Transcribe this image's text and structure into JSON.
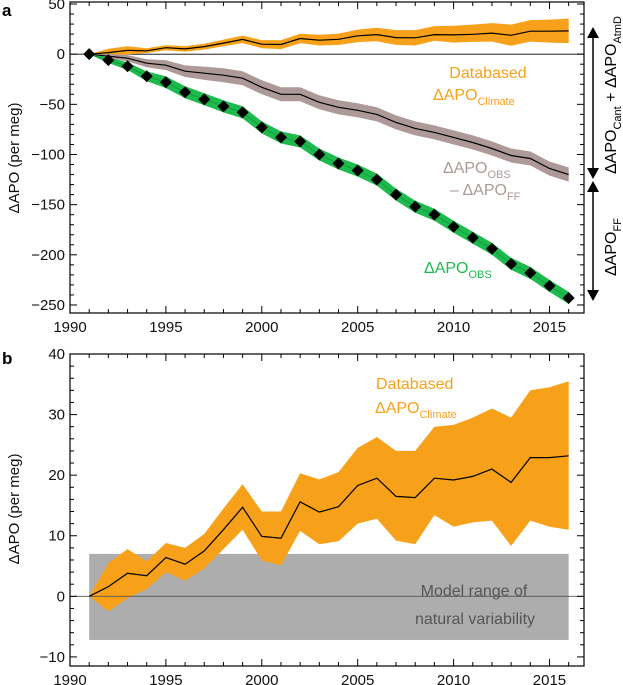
{
  "colors": {
    "climate": "#f7a11a",
    "obs": "#1dbb4e",
    "obs_minus_ff": "#ad9a98",
    "natural_variability": "#adadad",
    "natural_text": "#555555",
    "line": "#000000"
  },
  "chart_data": [
    {
      "panel": "a",
      "type": "line",
      "xlabel": "",
      "ylabel": "ΔAPO (per meg)",
      "xlim": [
        1990,
        2016.8
      ],
      "ylim": [
        -258,
        52
      ],
      "xticks": [
        1990,
        1995,
        2000,
        2005,
        2010,
        2015
      ],
      "yticks": [
        50,
        0,
        -50,
        -100,
        -150,
        -200,
        -250
      ],
      "x": [
        1991,
        1992,
        1993,
        1994,
        1995,
        1996,
        1997,
        1998,
        1999,
        2000,
        2001,
        2002,
        2003,
        2004,
        2005,
        2006,
        2007,
        2008,
        2009,
        2010,
        2011,
        2012,
        2013,
        2014,
        2015,
        2016
      ],
      "series": [
        {
          "name": "Databased ΔAPO_Climate",
          "values": [
            0,
            1.6,
            3.8,
            3.4,
            6.4,
            5.3,
            7.5,
            11,
            14.7,
            9.9,
            9.6,
            15.6,
            13.9,
            14.8,
            18.3,
            19.5,
            16.5,
            16.3,
            19.5,
            19.2,
            19.8,
            21,
            18.8,
            22.9,
            22.9,
            23.2
          ],
          "upper": [
            0,
            5.5,
            7.8,
            5.8,
            8.8,
            8,
            10.3,
            14.5,
            18.5,
            14,
            14,
            20.3,
            19.3,
            20.5,
            24.5,
            26.3,
            24,
            24,
            28,
            28.3,
            29.5,
            31,
            29.5,
            34,
            34.5,
            35.5
          ],
          "lower": [
            0,
            -2.5,
            -0.3,
            1.2,
            4,
            2.6,
            4.6,
            7.8,
            11,
            5.9,
            5.1,
            10.8,
            8.6,
            9.1,
            12,
            12.8,
            9.2,
            8.6,
            13.4,
            11.5,
            12.2,
            12.5,
            8.3,
            12.5,
            11.5,
            11
          ]
        },
        {
          "name": "ΔAPO_OBS − ΔAPO_FF",
          "values": [
            0,
            -2,
            -4,
            -9,
            -11,
            -17,
            -19,
            -21,
            -24,
            -33,
            -40,
            -40,
            -48,
            -53,
            -56,
            -60,
            -68,
            -74,
            -78,
            -83,
            -88,
            -94,
            -101,
            -104,
            -114,
            -120
          ],
          "uncertainty": 7
        },
        {
          "name": "ΔAPO_OBS",
          "values": [
            0,
            -6,
            -12,
            -22,
            -28,
            -38,
            -45,
            -52,
            -58,
            -73,
            -83,
            -87,
            -100,
            -109,
            -116,
            -125,
            -140,
            -152,
            -160,
            -172,
            -183,
            -194,
            -209,
            -218,
            -231,
            -243
          ],
          "uncertainty": 6
        }
      ],
      "annotations": [
        {
          "main": "Databased",
          "line2": "ΔAPO",
          "sub": "Climate"
        },
        {
          "main": "ΔAPO",
          "sub": "OBS",
          "line2": "– ΔAPO",
          "sub2": "FF"
        },
        {
          "main": "ΔAPO",
          "sub": "OBS"
        }
      ],
      "side_labels": [
        {
          "main": "ΔAPO",
          "sub": "Cant",
          "mid": " + ΔAPO",
          "sub2": "AtmD"
        },
        {
          "main": "ΔAPO",
          "sub": "FF"
        }
      ]
    },
    {
      "panel": "b",
      "type": "area",
      "xlabel": "",
      "ylabel": "ΔAPO (per meg)",
      "xlim": [
        1990,
        2016.8
      ],
      "ylim": [
        -11.5,
        40
      ],
      "xticks": [
        1990,
        1995,
        2000,
        2005,
        2010,
        2015
      ],
      "yticks": [
        40,
        30,
        20,
        10,
        0,
        -10
      ],
      "x": [
        1991,
        1992,
        1993,
        1994,
        1995,
        1996,
        1997,
        1998,
        1999,
        2000,
        2001,
        2002,
        2003,
        2004,
        2005,
        2006,
        2007,
        2008,
        2009,
        2010,
        2011,
        2012,
        2013,
        2014,
        2015,
        2016
      ],
      "series": [
        {
          "name": "Databased ΔAPO_Climate",
          "values": [
            0,
            1.6,
            3.8,
            3.4,
            6.4,
            5.3,
            7.5,
            11,
            14.7,
            9.9,
            9.6,
            15.6,
            13.9,
            14.8,
            18.3,
            19.5,
            16.5,
            16.3,
            19.5,
            19.2,
            19.8,
            21,
            18.8,
            22.9,
            22.9,
            23.2
          ],
          "upper": [
            0,
            5.5,
            7.8,
            5.8,
            8.8,
            8,
            10.3,
            14.5,
            18.5,
            14,
            14,
            20.3,
            19.3,
            20.5,
            24.5,
            26.3,
            24,
            24,
            28,
            28.3,
            29.5,
            31,
            29.5,
            34,
            34.5,
            35.5
          ],
          "lower": [
            0,
            -2.5,
            -0.3,
            1.2,
            4,
            2.6,
            4.6,
            7.8,
            11,
            5.9,
            5.1,
            10.8,
            8.6,
            9.1,
            12,
            12.8,
            9.2,
            8.6,
            13.4,
            11.5,
            12.2,
            12.5,
            8.3,
            12.5,
            11.5,
            11
          ]
        }
      ],
      "natural_variability_range": [
        -7.2,
        7
      ],
      "annotations": [
        {
          "main": "Databased",
          "line2": "ΔAPO",
          "sub": "Climate"
        },
        {
          "main": "Model range of",
          "line2": "natural variability"
        }
      ]
    }
  ]
}
